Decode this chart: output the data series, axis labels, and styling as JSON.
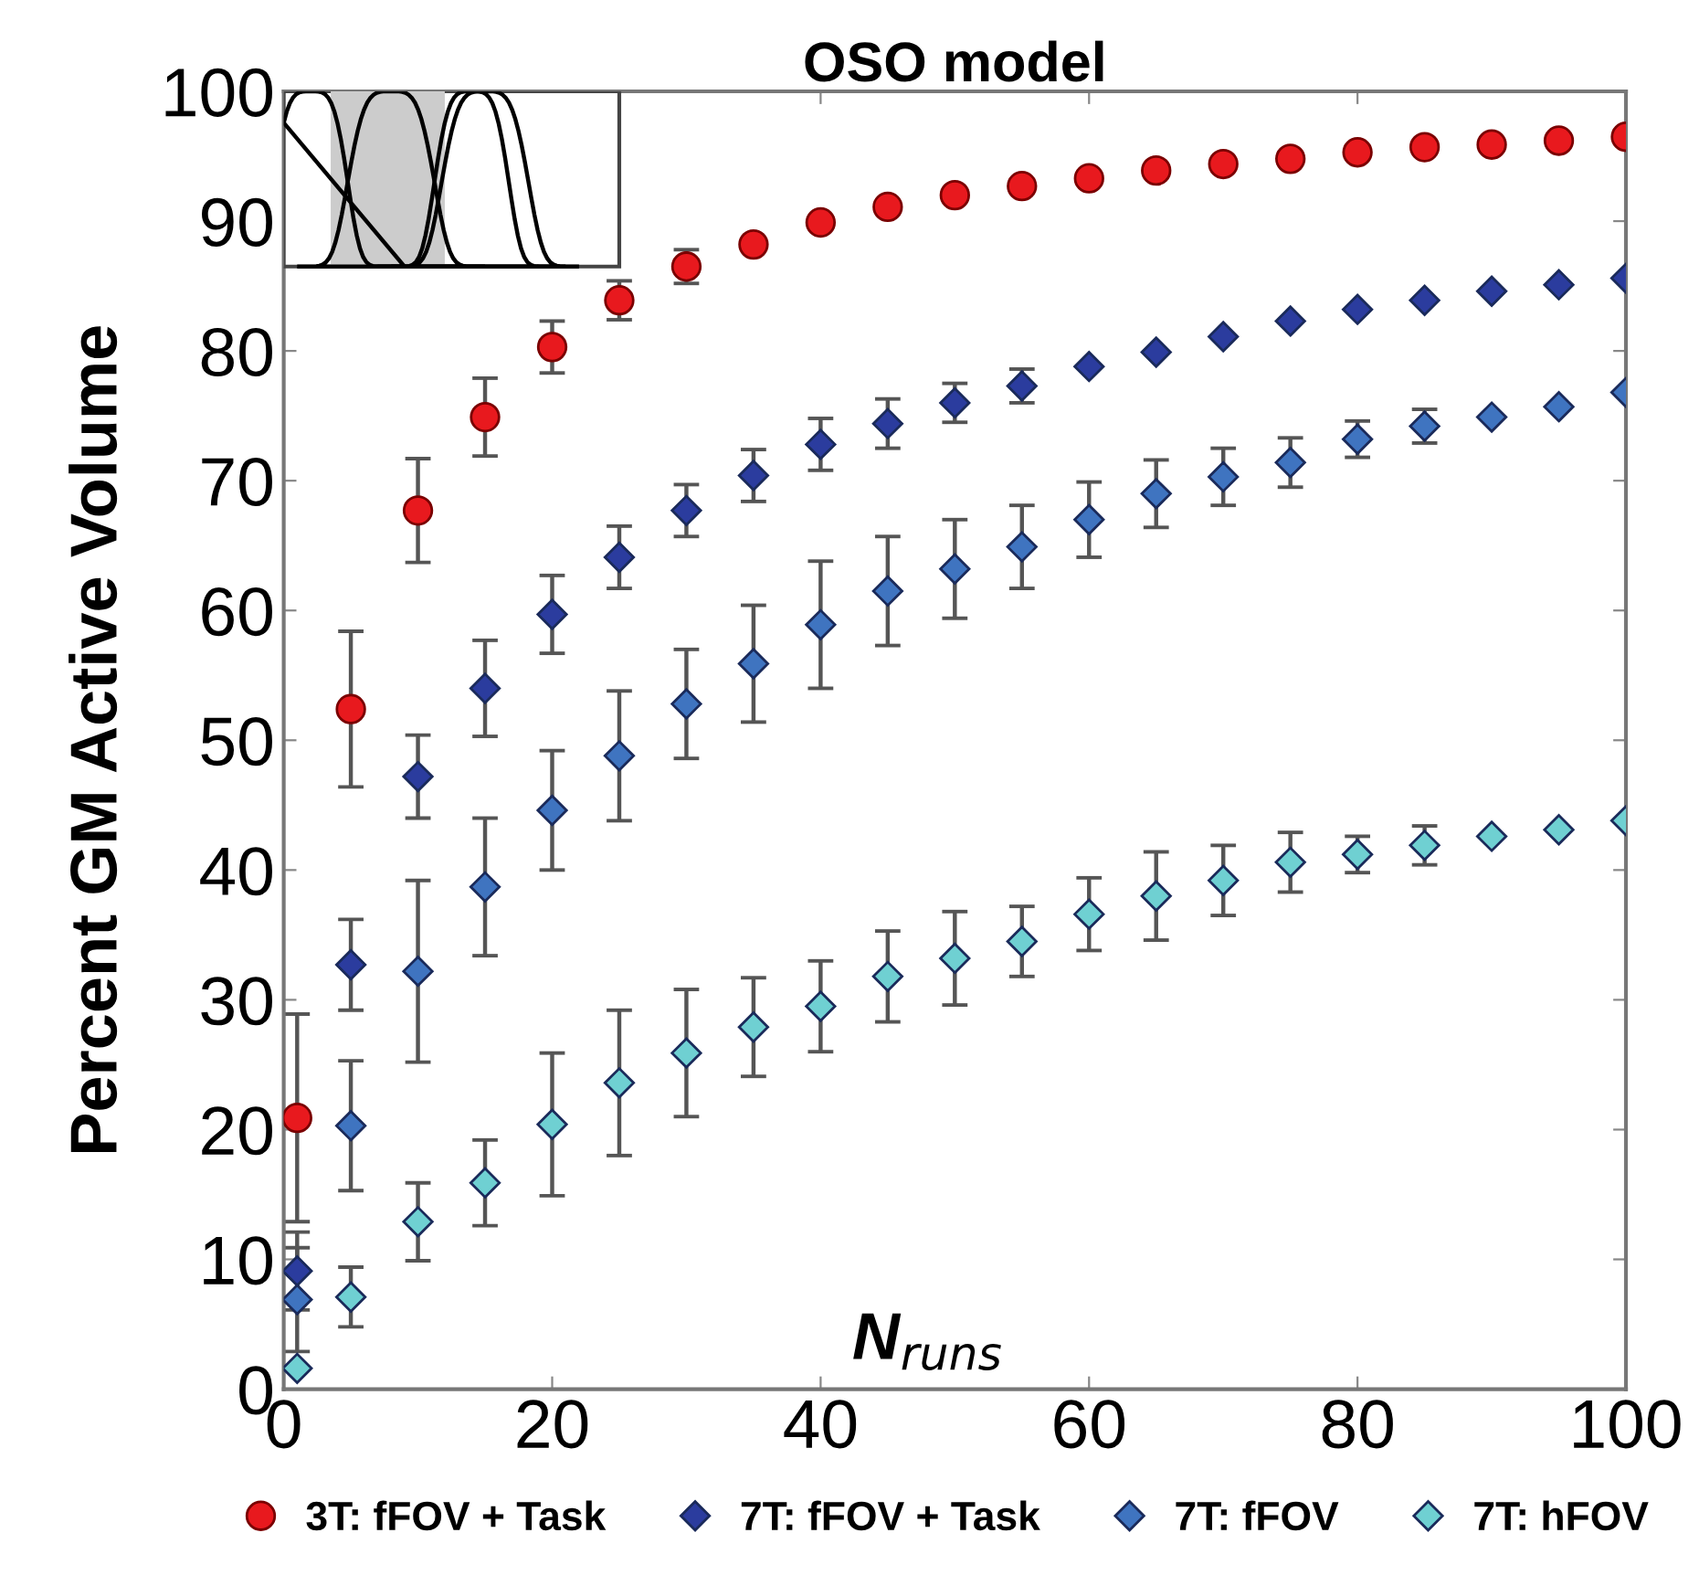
{
  "chart_data": {
    "type": "scatter",
    "title": "OSO model",
    "xlabel": "N$_{runs}$",
    "ylabel": "Percent GM Active Volume",
    "x": [
      1,
      5,
      10,
      15,
      20,
      25,
      30,
      35,
      40,
      45,
      50,
      55,
      60,
      65,
      70,
      75,
      80,
      85,
      90,
      95,
      100
    ],
    "xlim": [
      0,
      100
    ],
    "xticks": [
      0,
      20,
      40,
      60,
      80,
      100
    ],
    "ylim": [
      0,
      100
    ],
    "yticks": [
      0,
      10,
      20,
      30,
      40,
      50,
      60,
      70,
      80,
      90,
      100
    ],
    "grid": false,
    "legend": "bottom",
    "series": [
      {
        "name": "3T: fFOV + Task",
        "color": "#e8191e",
        "marker": "circle",
        "values": [
          20.9,
          52.4,
          67.7,
          74.9,
          80.3,
          83.9,
          86.5,
          88.2,
          89.9,
          91.1,
          92.0,
          92.7,
          93.3,
          93.9,
          94.4,
          94.8,
          95.3,
          95.7,
          95.9,
          96.2,
          96.5
        ],
        "errors": [
          8,
          6,
          4,
          3,
          2,
          1.5,
          1.3,
          null,
          null,
          null,
          null,
          null,
          null,
          null,
          null,
          null,
          null,
          null,
          null,
          null,
          null
        ]
      },
      {
        "name": "7T: fFOV + Task",
        "color": "#2b3c9e",
        "marker": "diamond",
        "values": [
          9.1,
          32.7,
          47.2,
          54.0,
          59.7,
          64.1,
          67.7,
          70.4,
          72.8,
          74.4,
          76.0,
          77.3,
          78.8,
          79.9,
          81.1,
          82.3,
          83.2,
          83.9,
          84.6,
          85.1,
          85.6
        ],
        "errors": [
          3,
          3.5,
          3.2,
          3.7,
          3,
          2.4,
          2,
          2,
          2,
          1.9,
          1.5,
          1.3,
          null,
          null,
          null,
          null,
          null,
          null,
          null,
          null,
          null
        ]
      },
      {
        "name": "7T: fFOV",
        "color": "#3f74c0",
        "marker": "diamond",
        "values": [
          6.9,
          20.3,
          32.2,
          38.7,
          44.6,
          48.8,
          52.8,
          55.9,
          58.9,
          61.5,
          63.2,
          64.9,
          67.0,
          69.0,
          70.3,
          71.4,
          73.2,
          74.2,
          74.9,
          75.7,
          76.8
        ],
        "errors": [
          4,
          5,
          7,
          5.3,
          4.6,
          5,
          4.2,
          4.5,
          4.9,
          4.2,
          3.8,
          3.2,
          2.9,
          2.6,
          2.2,
          1.9,
          1.4,
          1.3,
          null,
          null,
          null
        ]
      },
      {
        "name": "7T: hFOV",
        "color": "#6fd0d2",
        "marker": "diamond",
        "values": [
          1.6,
          7.1,
          12.9,
          15.9,
          20.4,
          23.6,
          25.9,
          27.9,
          29.5,
          31.8,
          33.2,
          34.5,
          36.6,
          38.0,
          39.2,
          40.6,
          41.2,
          41.9,
          42.6,
          43.1,
          43.8
        ],
        "errors": [
          null,
          2.3,
          3,
          3.3,
          5.5,
          5.6,
          4.9,
          3.8,
          3.5,
          3.5,
          3.6,
          2.7,
          2.8,
          3.4,
          2.7,
          2.3,
          1.4,
          1.5,
          null,
          null,
          null
        ]
      }
    ]
  }
}
